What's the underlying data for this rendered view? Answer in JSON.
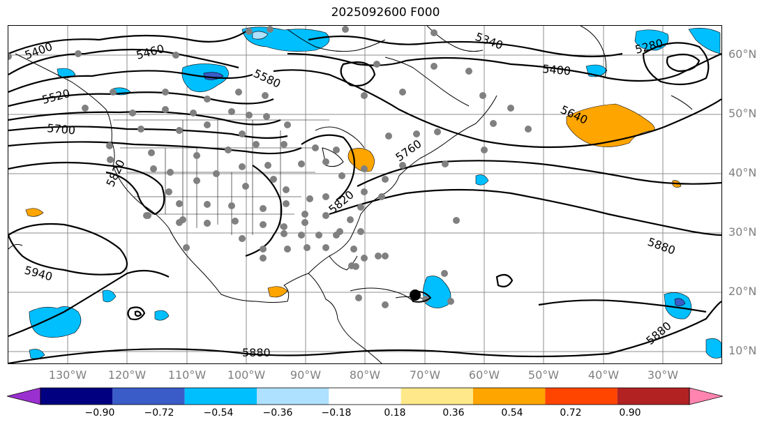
{
  "title": "2025092600 F000",
  "lat_labels": [
    "60°N",
    "50°N",
    "40°N",
    "30°N",
    "20°N",
    "10°N"
  ],
  "lon_labels": [
    "130°W",
    "120°W",
    "110°W",
    "100°W",
    "90°W",
    "80°W",
    "70°W",
    "60°W",
    "50°W",
    "40°W",
    "30°W"
  ],
  "contour_labels": [
    "5400",
    "5460",
    "5340",
    "5400",
    "5280",
    "5580",
    "5640",
    "5700",
    "5820",
    "5760",
    "5820",
    "5880",
    "5940",
    "5880",
    "5880",
    "5520"
  ],
  "colorbar": {
    "tick_labels": [
      "−0.90",
      "−0.72",
      "−0.54",
      "−0.36",
      "−0.18",
      "0.18",
      "0.36",
      "0.54",
      "0.72",
      "0.90"
    ],
    "colors": [
      "#9b30d0",
      "#000080",
      "#3a5cc8",
      "#00bfff",
      "#aee0ff",
      "#ffffff",
      "#ffe88a",
      "#ffa500",
      "#ff4500",
      "#b22222",
      "#ff85b0"
    ]
  },
  "colors": {
    "map_frame": "#000000",
    "grid": "#8c8c8c",
    "coast": "#000000",
    "contour": "#000000",
    "station": "#808080",
    "tick_text": "#7f7f7f"
  }
}
